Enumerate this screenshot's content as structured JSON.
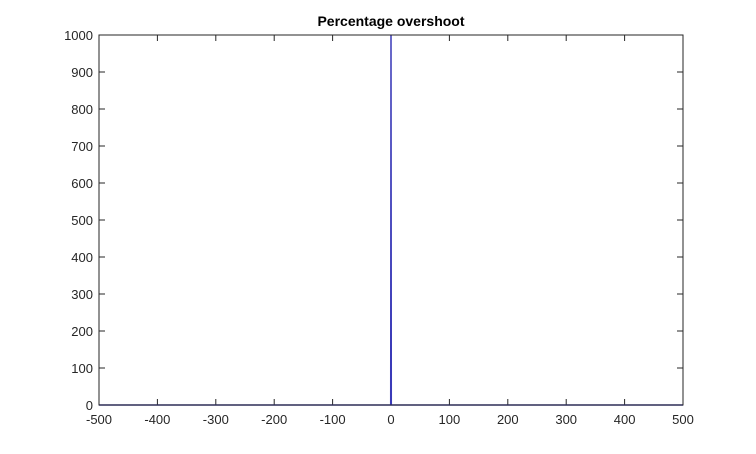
{
  "chart_data": {
    "type": "line",
    "title": "Percentage overshoot",
    "xlabel": "",
    "ylabel": "",
    "xlim": [
      -500,
      500
    ],
    "ylim": [
      0,
      1000
    ],
    "xticks": [
      -500,
      -400,
      -300,
      -200,
      -100,
      0,
      100,
      200,
      300,
      400,
      500
    ],
    "yticks": [
      0,
      100,
      200,
      300,
      400,
      500,
      600,
      700,
      800,
      900,
      1000
    ],
    "xtick_labels": [
      "-500",
      "-400",
      "-300",
      "-200",
      "-100",
      "0",
      "100",
      "200",
      "300",
      "400",
      "500"
    ],
    "ytick_labels": [
      "0",
      "100",
      "200",
      "300",
      "400",
      "500",
      "600",
      "700",
      "800",
      "900",
      "1000"
    ],
    "grid": false,
    "series": [
      {
        "color": "#3a3ab8",
        "x": [
          -500,
          -0.5,
          0,
          0.5,
          500
        ],
        "y": [
          0,
          0,
          1000,
          0,
          0
        ]
      }
    ]
  }
}
